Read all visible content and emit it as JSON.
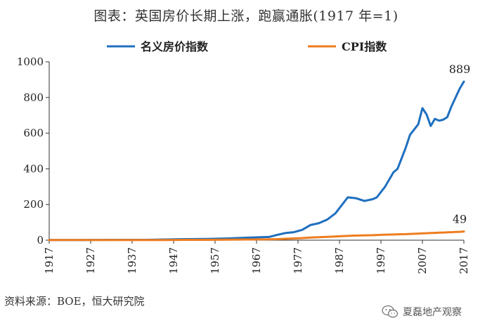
{
  "chart_data": {
    "type": "line",
    "title": "图表：英国房价长期上涨，跑赢通胀(1917 年=1)",
    "ylim": [
      0,
      1000
    ],
    "y_ticks": [
      0,
      200,
      400,
      600,
      800,
      1000
    ],
    "x_ticks": [
      "1917",
      "1927",
      "1937",
      "1947",
      "1957",
      "1967",
      "1977",
      "1987",
      "1997",
      "2007",
      "2017"
    ],
    "x": [
      1917,
      1925,
      1935,
      1940,
      1945,
      1950,
      1955,
      1960,
      1965,
      1970,
      1972,
      1974,
      1976,
      1978,
      1980,
      1982,
      1984,
      1986,
      1987,
      1989,
      1991,
      1993,
      1995,
      1996,
      1998,
      2000,
      2001,
      2003,
      2004,
      2006,
      2007,
      2008,
      2009,
      2010,
      2011,
      2012,
      2013,
      2014,
      2015,
      2016,
      2017
    ],
    "series": [
      {
        "name": "名义房价指数",
        "color": "#1f6fbf",
        "end_label": "889",
        "values": [
          1,
          1,
          2,
          2,
          4,
          6,
          7,
          10,
          14,
          18,
          30,
          40,
          45,
          58,
          85,
          95,
          115,
          150,
          180,
          240,
          235,
          220,
          230,
          240,
          300,
          380,
          400,
          520,
          590,
          650,
          740,
          705,
          640,
          680,
          670,
          675,
          690,
          750,
          800,
          850,
          889
        ]
      },
      {
        "name": "CPI指数",
        "color": "#ee7d1f",
        "end_label": "49",
        "values": [
          1,
          1,
          1,
          1,
          1,
          2,
          2,
          3,
          4,
          5,
          6,
          8,
          10,
          12,
          15,
          17,
          19,
          21,
          22,
          24,
          26,
          27,
          28,
          29,
          31,
          32,
          33,
          34,
          35,
          37,
          38,
          39,
          40,
          41,
          42,
          43,
          44,
          45,
          46,
          47,
          49
        ]
      }
    ]
  },
  "source_note": "资料来源：BOE，恒大研究院",
  "watermark": "夏磊地产观察"
}
